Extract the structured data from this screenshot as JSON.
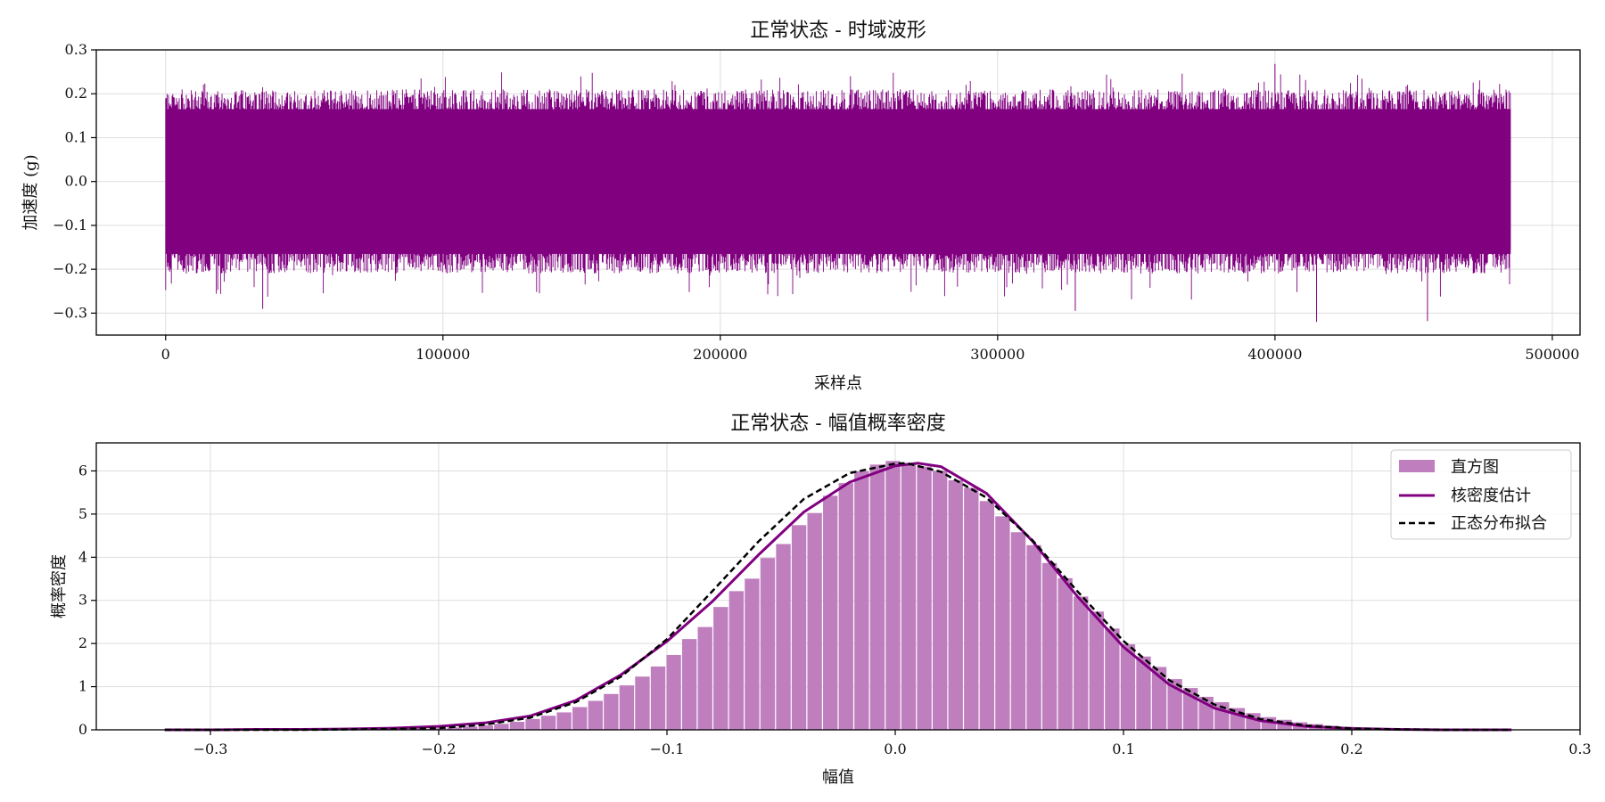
{
  "chart_data": [
    {
      "type": "line",
      "title": "正常状态 - 时域波形",
      "xlabel": "采样点",
      "ylabel": "加速度 (g)",
      "xlim": [
        -25000,
        510000
      ],
      "ylim": [
        -0.35,
        0.3
      ],
      "xticks": [
        0,
        100000,
        200000,
        300000,
        400000,
        500000
      ],
      "xtick_labels": [
        "0",
        "100000",
        "200000",
        "300000",
        "400000",
        "500000"
      ],
      "yticks": [
        -0.3,
        -0.2,
        -0.1,
        0.0,
        0.1,
        0.2,
        0.3
      ],
      "ytick_labels": [
        "−0.3",
        "−0.2",
        "−0.1",
        "0.0",
        "0.1",
        "0.2",
        "0.3"
      ],
      "grid": true,
      "series": [
        {
          "color": "#800080",
          "x_range": [
            0,
            485000
          ],
          "core_band": [
            -0.165,
            0.165
          ],
          "peak_max": 0.268,
          "peak_min": -0.32
        }
      ]
    },
    {
      "type": "area",
      "title": "正常状态 - 幅值概率密度",
      "xlabel": "幅值",
      "ylabel": "概率密度",
      "xlim": [
        -0.35,
        0.3
      ],
      "ylim": [
        0,
        6.65
      ],
      "xticks": [
        -0.3,
        -0.2,
        -0.1,
        0.0,
        0.1,
        0.2,
        0.3
      ],
      "xtick_labels": [
        "−0.3",
        "−0.2",
        "−0.1",
        "0.0",
        "0.1",
        "0.2",
        "0.3"
      ],
      "yticks": [
        0,
        1,
        2,
        3,
        4,
        5,
        6
      ],
      "ytick_labels": [
        "0",
        "1",
        "2",
        "3",
        "4",
        "5",
        "6"
      ],
      "grid": true,
      "legend_position": "top-right",
      "histogram": {
        "name": "直方图",
        "color": "#bf7fbf",
        "bin_range": [
          -0.32,
          0.27
        ],
        "bins": 86,
        "mean": 0.005,
        "std": 0.0645,
        "peak": 6.2
      },
      "series": [
        {
          "name": "核密度估计",
          "style": "solid",
          "color": "#800080",
          "x": [
            -0.32,
            -0.3,
            -0.28,
            -0.26,
            -0.24,
            -0.22,
            -0.2,
            -0.18,
            -0.16,
            -0.14,
            -0.12,
            -0.1,
            -0.08,
            -0.06,
            -0.04,
            -0.02,
            0.0,
            0.01,
            0.02,
            0.04,
            0.06,
            0.08,
            0.1,
            0.12,
            0.14,
            0.16,
            0.18,
            0.2,
            0.22,
            0.24,
            0.27
          ],
          "y": [
            0.0,
            0.0,
            0.01,
            0.01,
            0.02,
            0.04,
            0.08,
            0.16,
            0.32,
            0.68,
            1.28,
            2.05,
            2.98,
            4.05,
            5.05,
            5.74,
            6.12,
            6.18,
            6.1,
            5.48,
            4.38,
            3.08,
            1.92,
            1.05,
            0.5,
            0.21,
            0.08,
            0.03,
            0.01,
            0.0,
            0.0
          ]
        },
        {
          "name": "正态分布拟合",
          "style": "dashed",
          "color": "#000000",
          "x": [
            -0.32,
            -0.3,
            -0.28,
            -0.26,
            -0.24,
            -0.22,
            -0.2,
            -0.18,
            -0.16,
            -0.14,
            -0.12,
            -0.1,
            -0.08,
            -0.06,
            -0.04,
            -0.02,
            0.0,
            0.005,
            0.02,
            0.04,
            0.06,
            0.08,
            0.1,
            0.12,
            0.14,
            0.16,
            0.18,
            0.2,
            0.22,
            0.24,
            0.27
          ],
          "y": [
            0.0,
            0.0,
            0.0,
            0.0,
            0.01,
            0.02,
            0.04,
            0.12,
            0.28,
            0.64,
            1.24,
            2.1,
            3.22,
            4.36,
            5.35,
            5.95,
            6.17,
            6.18,
            5.98,
            5.38,
            4.4,
            3.2,
            2.06,
            1.15,
            0.58,
            0.25,
            0.1,
            0.03,
            0.01,
            0.0,
            0.0
          ]
        }
      ]
    }
  ]
}
